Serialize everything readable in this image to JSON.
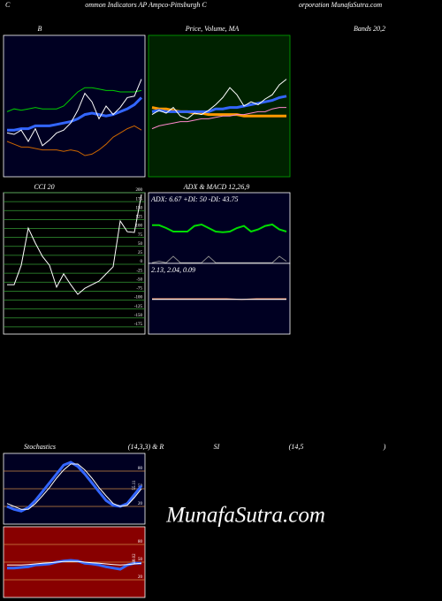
{
  "captions": [
    "C",
    "ommon  Indicators AP Ampco-Pittsburgh C",
    "orporation  MunafaSutra.com",
    "B",
    "Price,  Volume,  MA",
    "Bands 20,2",
    "CCI 20",
    "ADX  & MACD 12,26,9",
    "Stochastics",
    "(14,3,3) & R",
    "SI",
    "(14,5",
    ")",
    "MunafaSutra.com"
  ],
  "chart_data": [
    {
      "type": "line",
      "ylim": [
        0,
        100
      ],
      "series": [
        {
          "color": "#00cc00",
          "values": [
            46,
            48,
            47,
            48,
            49,
            48,
            48,
            48,
            50,
            55,
            60,
            63,
            63,
            62,
            61,
            61,
            60,
            60,
            60,
            61
          ]
        },
        {
          "color": "#cc6600",
          "values": [
            25,
            23,
            21,
            21,
            20,
            19,
            19,
            19,
            18,
            19,
            18,
            15,
            16,
            19,
            23,
            28,
            31,
            34,
            36,
            33
          ]
        },
        {
          "color": "#3366ff",
          "width": 3,
          "values": [
            33,
            33,
            34,
            34,
            36,
            36,
            36,
            37,
            38,
            39,
            41,
            44,
            45,
            44,
            43,
            44,
            46,
            48,
            51,
            56
          ]
        },
        {
          "color": "#ffffff",
          "values": [
            31,
            30,
            33,
            25,
            34,
            22,
            26,
            31,
            33,
            38,
            47,
            59,
            53,
            41,
            50,
            44,
            49,
            56,
            57,
            69
          ]
        }
      ]
    },
    {
      "type": "line",
      "ylim": [
        0,
        100
      ],
      "series": [
        {
          "color": "#ff9900",
          "width": 3,
          "values": [
            49,
            48,
            48,
            47,
            46,
            46,
            45,
            45,
            44,
            44,
            44,
            44,
            44,
            43,
            43,
            43,
            43,
            43,
            43,
            43
          ]
        },
        {
          "color": "#ff88cc",
          "values": [
            34,
            36,
            37,
            38,
            39,
            39,
            40,
            41,
            41,
            42,
            43,
            43,
            44,
            44,
            45,
            46,
            46,
            48,
            49,
            49
          ]
        },
        {
          "color": "#3366ff",
          "width": 3,
          "values": [
            46,
            47,
            46,
            46,
            46,
            46,
            46,
            46,
            46,
            48,
            48,
            49,
            49,
            50,
            51,
            52,
            53,
            54,
            56,
            57
          ]
        },
        {
          "color": "#ffffff",
          "values": [
            44,
            47,
            45,
            49,
            43,
            41,
            45,
            44,
            47,
            51,
            56,
            63,
            58,
            50,
            53,
            51,
            55,
            58,
            65,
            69
          ]
        }
      ]
    },
    {
      "type": "line",
      "ylim": [
        -195,
        200
      ],
      "yticks": [
        200,
        175,
        150,
        125,
        100,
        75,
        50,
        25,
        0,
        -25,
        -50,
        -75,
        -100,
        -125,
        -150,
        -175
      ],
      "grid": true,
      "grid_color": "#339933",
      "series": [
        {
          "color": "#ffffff",
          "values": [
            -57,
            -57,
            -3,
            101,
            59,
            22,
            -3,
            -64,
            -27,
            -57,
            -84,
            -67,
            -57,
            -47,
            -27,
            -7,
            121,
            91,
            89,
            195
          ]
        }
      ]
    },
    {
      "type": "line",
      "ylim": [
        0,
        100
      ],
      "annotation": "ADX: 6.67  +DI: 50  -DI: 43.75",
      "series": [
        {
          "color": "#00dd00",
          "width": 2,
          "values": [
            54,
            54,
            50,
            45,
            45,
            45,
            53,
            55,
            50,
            45,
            44,
            45,
            50,
            53,
            45,
            48,
            53,
            55,
            48,
            45
          ]
        },
        {
          "color": "#888888",
          "values": [
            1,
            3,
            1,
            10,
            1,
            1,
            1,
            1,
            10,
            1,
            1,
            1,
            1,
            1,
            1,
            1,
            1,
            1,
            10,
            3
          ]
        }
      ]
    },
    {
      "type": "line",
      "ylim": [
        0,
        100
      ],
      "annotation": "2.13,  2.04,  0.09",
      "series": [
        {
          "color": "#ff9966",
          "values": [
            50,
            50,
            50,
            50,
            50,
            50,
            49,
            50,
            50,
            50
          ]
        },
        {
          "color": "#ffffff",
          "values": [
            49,
            49,
            49,
            49,
            49,
            49,
            49,
            49,
            49,
            49
          ]
        }
      ]
    },
    {
      "type": "line",
      "ylim": [
        -10,
        110
      ],
      "yticks": [
        80,
        50,
        20
      ],
      "grid": true,
      "grid_color": "#cc8844",
      "annotation": "55.11",
      "series": [
        {
          "color": "#3366ff",
          "width": 3,
          "values": [
            20,
            15,
            12,
            18,
            30,
            45,
            60,
            75,
            90,
            95,
            88,
            75,
            60,
            45,
            30,
            22,
            20,
            25,
            40,
            55
          ]
        },
        {
          "color": "#ffffff",
          "values": [
            25,
            20,
            15,
            15,
            25,
            38,
            52,
            68,
            82,
            92,
            92,
            82,
            68,
            52,
            38,
            25,
            20,
            22,
            35,
            50
          ]
        }
      ]
    },
    {
      "type": "line",
      "ylim": [
        -10,
        110
      ],
      "yticks": [
        80,
        50,
        20
      ],
      "grid": true,
      "grid_color": "#cc8844",
      "annotation": "48.02",
      "series": [
        {
          "color": "#3366ff",
          "width": 3,
          "values": [
            40,
            40,
            41,
            42,
            45,
            46,
            47,
            50,
            52,
            53,
            52,
            48,
            47,
            45,
            42,
            40,
            38,
            45,
            48,
            48
          ]
        },
        {
          "color": "#ffffff",
          "values": [
            45,
            45,
            45,
            46,
            47,
            48,
            49,
            50,
            51,
            51,
            51,
            50,
            49,
            48,
            47,
            46,
            45,
            46,
            47,
            48
          ]
        }
      ]
    }
  ]
}
